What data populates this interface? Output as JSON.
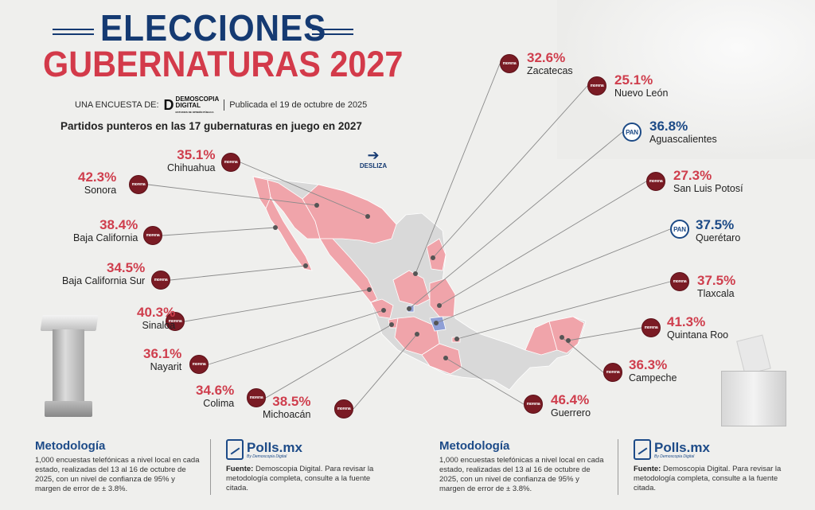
{
  "header": {
    "title_line1": "ELECCIONES",
    "title_line2": "GUBERNATURAS 2027",
    "byline_prefix": "UNA ENCUESTA DE:",
    "pollster_logo_main": "DEMOSCOPIA",
    "pollster_logo_sub": "DIGITAL",
    "pollster_logo_tag": "ESTUDIOS DE OPINIÓN PÚBLICA",
    "published": "Publicada el 19 de octubre de 2025",
    "subtitle": "Partidos punteros en las 17 gubernaturas en juego en 2027",
    "swipe_hint": "DESLIZA"
  },
  "colors": {
    "morena": "#f0a4aa",
    "pan": "#8f9fd6",
    "other": "#d9d9d9",
    "title_blue": "#153a72",
    "title_red": "#d33a4a"
  },
  "party_labels": {
    "morena": "morena",
    "pan": "PAN"
  },
  "states": [
    {
      "name": "Chihuahua",
      "pct": "35.1%",
      "party": "morena"
    },
    {
      "name": "Sonora",
      "pct": "42.3%",
      "party": "morena"
    },
    {
      "name": "Baja California",
      "pct": "38.4%",
      "party": "morena"
    },
    {
      "name": "Baja California Sur",
      "pct": "34.5%",
      "party": "morena"
    },
    {
      "name": "Sinaloa",
      "pct": "40.3%",
      "party": "morena"
    },
    {
      "name": "Nayarit",
      "pct": "36.1%",
      "party": "morena"
    },
    {
      "name": "Colima",
      "pct": "34.6%",
      "party": "morena"
    },
    {
      "name": "Michoacán",
      "pct": "38.5%",
      "party": "morena"
    },
    {
      "name": "Guerrero",
      "pct": "46.4%",
      "party": "morena"
    },
    {
      "name": "Campeche",
      "pct": "36.3%",
      "party": "morena"
    },
    {
      "name": "Quintana Roo",
      "pct": "41.3%",
      "party": "morena"
    },
    {
      "name": "Tlaxcala",
      "pct": "37.5%",
      "party": "morena"
    },
    {
      "name": "Querétaro",
      "pct": "37.5%",
      "party": "pan"
    },
    {
      "name": "San Luis Potosí",
      "pct": "27.3%",
      "party": "morena"
    },
    {
      "name": "Aguascalientes",
      "pct": "36.8%",
      "party": "pan"
    },
    {
      "name": "Nuevo León",
      "pct": "25.1%",
      "party": "morena"
    },
    {
      "name": "Zacatecas",
      "pct": "32.6%",
      "party": "morena"
    }
  ],
  "footer": {
    "methodology_title": "Metodología",
    "methodology_text": "1,000 encuestas telefónicas a nivel local en cada estado, realizadas del 13 al 16 de octubre de 2025, con un nivel de confianza de 95% y margen de error de ± 3.8%.",
    "brand_name": "Polls.mx",
    "brand_by": "By Demoscopia Digital",
    "source_label": "Fuente:",
    "source_text": "Demoscopia Digital. Para revisar la metodología completa, consulte a la fuente citada."
  }
}
